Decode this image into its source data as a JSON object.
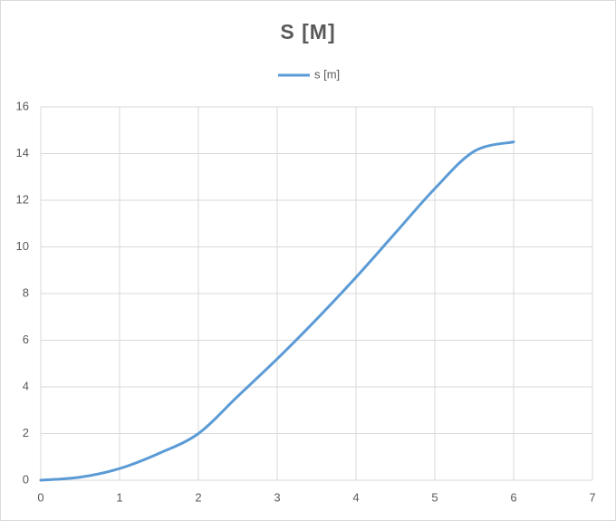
{
  "chart_data": {
    "type": "scatter_smooth",
    "title": "S [M]",
    "x": [
      0,
      0.5,
      1,
      1.5,
      2,
      2.5,
      3,
      3.5,
      4,
      4.5,
      5,
      5.5,
      6
    ],
    "series": [
      {
        "name": "s [m]",
        "color": "#5b9bd5",
        "values": [
          0,
          0.13,
          0.5,
          1.15,
          2,
          3.6,
          5.2,
          6.9,
          8.7,
          10.6,
          12.5,
          14.1,
          14.5
        ]
      }
    ],
    "xlim": [
      0,
      7
    ],
    "xticks": [
      0,
      1,
      2,
      3,
      4,
      5,
      6,
      7
    ],
    "ylim": [
      0,
      16
    ],
    "yticks": [
      0,
      2,
      4,
      6,
      8,
      10,
      12,
      14,
      16
    ],
    "grid": true,
    "legend": "top"
  }
}
